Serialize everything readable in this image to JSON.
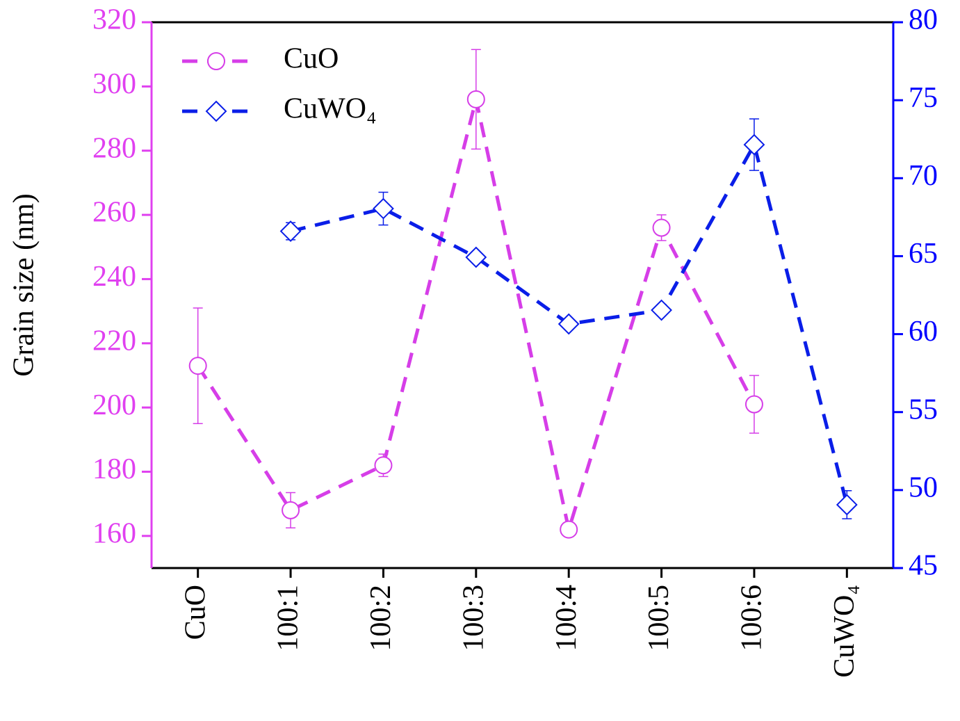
{
  "chart_data": {
    "type": "line",
    "categories": [
      "CuO",
      "100:1",
      "100:2",
      "100:3",
      "100:4",
      "100:5",
      "100:6",
      "CuWO₄"
    ],
    "y_label": "Grain size (nm)",
    "ylim": [
      150,
      320
    ],
    "yticks": [
      160,
      180,
      200,
      220,
      240,
      260,
      280,
      300,
      320
    ],
    "y_color": "#e040f0",
    "y2lim": [
      45,
      80
    ],
    "y2ticks": [
      45,
      50,
      55,
      60,
      65,
      70,
      75,
      80
    ],
    "y2_color": "#0000ff",
    "legend": "top-left",
    "series": [
      {
        "name": "CuO",
        "color": "#d63ee8",
        "marker": "circle",
        "axis": "y",
        "values": [
          213,
          168,
          182,
          296,
          162,
          256,
          201,
          null
        ],
        "errors": [
          18,
          5.5,
          3.5,
          15.5,
          1.5,
          4,
          9,
          null
        ]
      },
      {
        "name": "CuWO₄",
        "color": "#0a1ee8",
        "marker": "diamond",
        "axis": "y2",
        "values": [
          null,
          66.6,
          68.05,
          64.93,
          60.65,
          61.54,
          72.15,
          49.06
        ],
        "errors": [
          null,
          0.55,
          1.05,
          0.2,
          0.2,
          0.2,
          1.65,
          0.9
        ]
      }
    ]
  }
}
